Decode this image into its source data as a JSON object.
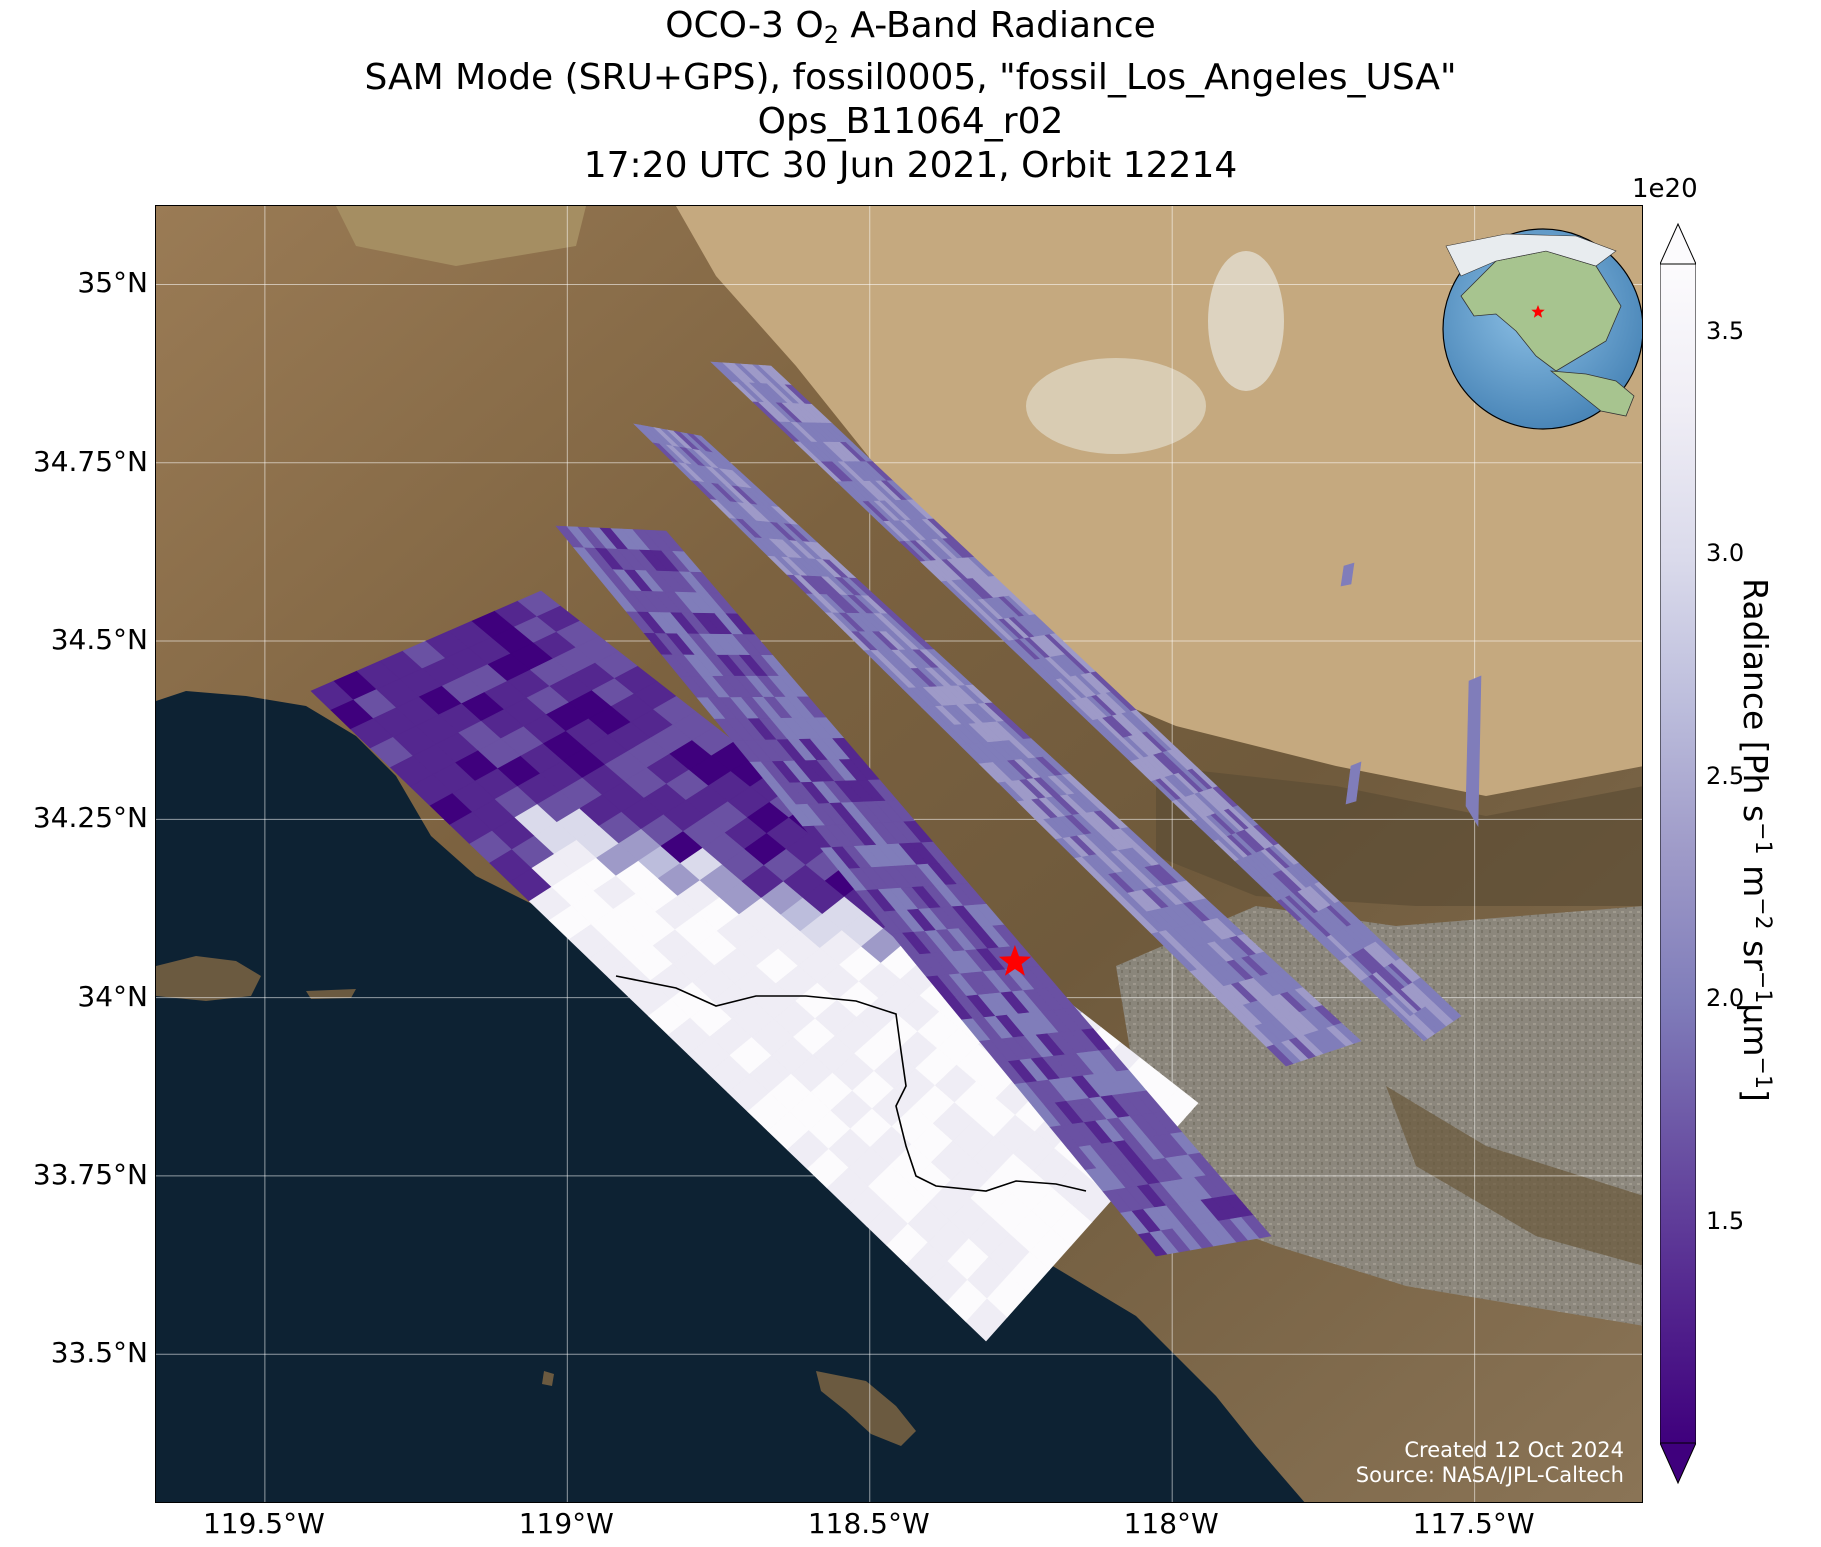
{
  "title": {
    "line1_prefix": "OCO-3 O",
    "line1_sub": "2",
    "line1_suffix": " A-Band Radiance",
    "line2": "SAM Mode (SRU+GPS), fossil0005, \"fossil_Los_Angeles_USA\"",
    "line3": "Ops_B11064_r02",
    "line4": "17:20 UTC 30 Jun 2021, Orbit 12214"
  },
  "map": {
    "extent_lon": [
      -119.68,
      -117.22
    ],
    "extent_lat": [
      33.29,
      35.11
    ],
    "lat_ticks": [
      {
        "value": 35.0,
        "label": "35°N"
      },
      {
        "value": 34.75,
        "label": "34.75°N"
      },
      {
        "value": 34.5,
        "label": "34.5°N"
      },
      {
        "value": 34.25,
        "label": "34.25°N"
      },
      {
        "value": 34.0,
        "label": "34°N"
      },
      {
        "value": 33.75,
        "label": "33.75°N"
      },
      {
        "value": 33.5,
        "label": "33.5°N"
      }
    ],
    "lon_ticks": [
      {
        "value": -119.5,
        "label": "119.5°W"
      },
      {
        "value": -119.0,
        "label": "119°W"
      },
      {
        "value": -118.5,
        "label": "118.5°W"
      },
      {
        "value": -118.0,
        "label": "118°W"
      },
      {
        "value": -117.5,
        "label": "117.5°W"
      }
    ],
    "target": {
      "name": "fossil_Los_Angeles_USA",
      "lon": -118.26,
      "lat": 34.05
    },
    "gridlines": true,
    "inset_globe": {
      "position": "top-right",
      "marker_color": "#ff0000"
    },
    "colors": {
      "ocean": "#0d2233",
      "land": "#8d7150",
      "desert": "#c9ae84",
      "target_marker": "#ff0000",
      "grid": "#ffffff"
    }
  },
  "credit": {
    "line1": "Created 12 Oct 2024",
    "line2": "Source: NASA/JPL-Caltech"
  },
  "colorbar": {
    "exponent": "1e20",
    "label_parts": [
      "Radiance [Ph s",
      "−1",
      " m",
      "−2",
      " sr",
      "−1",
      "μm",
      "−1",
      "]"
    ],
    "min": 1.0,
    "max": 3.65,
    "extend": "both",
    "ticks": [
      {
        "value": 1.5,
        "label": "1.5"
      },
      {
        "value": 2.0,
        "label": "2.0"
      },
      {
        "value": 2.5,
        "label": "2.5"
      },
      {
        "value": 3.0,
        "label": "3.0"
      },
      {
        "value": 3.5,
        "label": "3.5"
      }
    ],
    "colors": [
      "#3f007d",
      "#54278f",
      "#6a51a3",
      "#807dba",
      "#9e9ac8",
      "#bcbddc",
      "#dadaeb",
      "#efedf5",
      "#fcfbfd"
    ]
  }
}
